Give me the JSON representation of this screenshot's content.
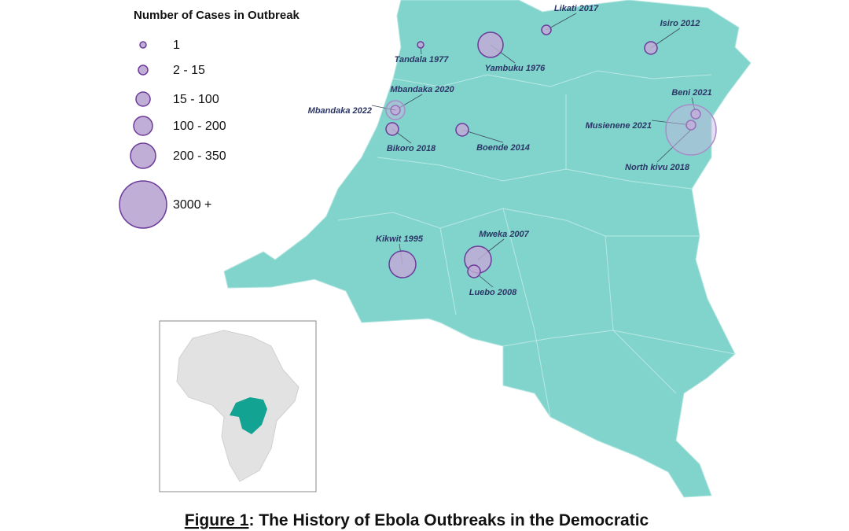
{
  "legend": {
    "title": "Number of Cases in Outbreak",
    "items": [
      "1",
      "2 - 15",
      "15 - 100",
      "100 - 200",
      "200 - 350",
      "3000 +"
    ]
  },
  "outbreaks": [
    {
      "label": "Likati 2017"
    },
    {
      "label": "Isiro 2012"
    },
    {
      "label": "Tandala 1977"
    },
    {
      "label": "Yambuku 1976"
    },
    {
      "label": "Mbandaka 2020"
    },
    {
      "label": "Mbandaka 2022"
    },
    {
      "label": "Bikoro 2018"
    },
    {
      "label": "Boende 2014"
    },
    {
      "label": "Beni 2021"
    },
    {
      "label": "Musienene 2021"
    },
    {
      "label": "North kivu 2018"
    },
    {
      "label": "Kikwit 1995"
    },
    {
      "label": "Mweka 2007"
    },
    {
      "label": "Luebo 2008"
    }
  ],
  "caption": {
    "label": "Figure 1",
    "text": ": The History of Ebola Outbreaks in the Democratic"
  }
}
